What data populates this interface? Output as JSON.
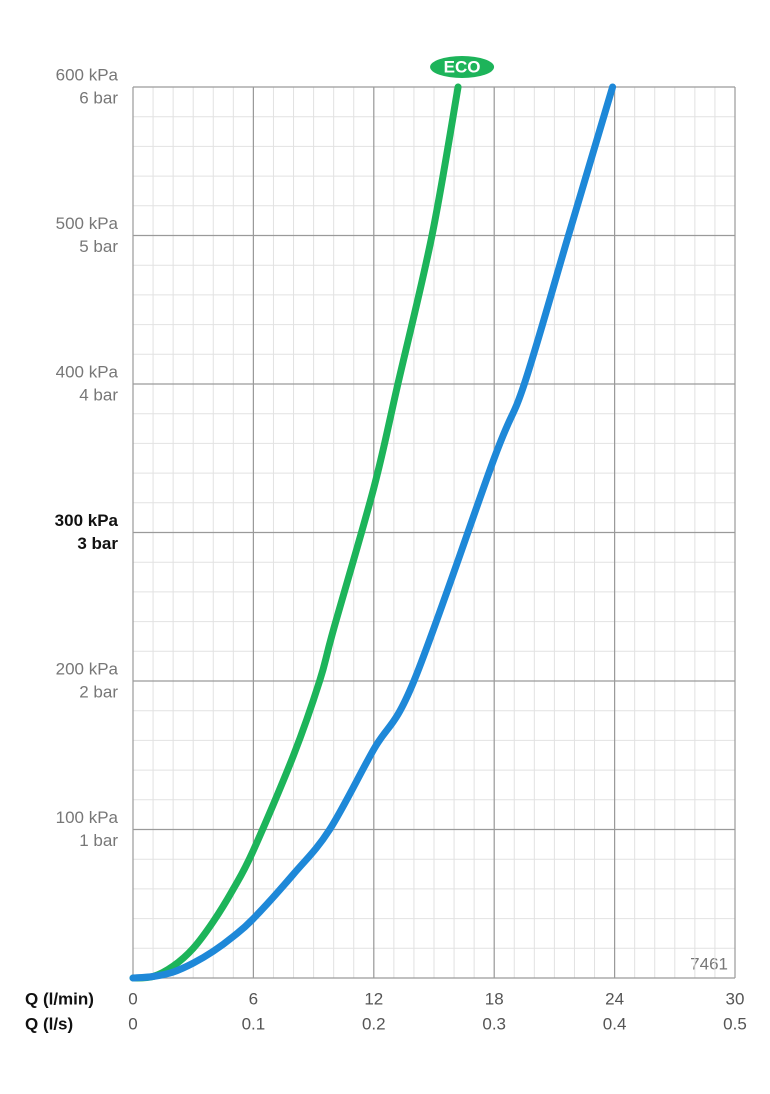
{
  "chart_data": {
    "type": "line",
    "xlim": [
      0,
      30
    ],
    "xticks": [
      0,
      6,
      12,
      18,
      24,
      30
    ],
    "x2lim": [
      0,
      0.5
    ],
    "x2ticks": [
      0,
      0.1,
      0.2,
      0.3,
      0.4,
      0.5
    ],
    "xlabel": "Q (l/min)",
    "x2label": "Q (l/s)",
    "ylim": [
      0,
      600
    ],
    "yticks": [
      {
        "value": 100,
        "label": "100 kPa"
      },
      {
        "value": 200,
        "label": "200 kPa"
      },
      {
        "value": 300,
        "label": "300 kPa"
      },
      {
        "value": 400,
        "label": "400 kPa"
      },
      {
        "value": 500,
        "label": "500 kPa"
      },
      {
        "value": 600,
        "label": "600 kPa"
      }
    ],
    "ytick_sublabels": [
      "1 bar",
      "2 bar",
      "3 bar",
      "4 bar",
      "5 bar",
      "6 bar"
    ],
    "bold_ytick": 300,
    "grid": true,
    "minor_xstep": 1,
    "minor_ystep": 20,
    "annotation": "7461",
    "series": [
      {
        "name": "ECO",
        "color": "#1db45a",
        "x": [
          0,
          1,
          2,
          3,
          4,
          5,
          6,
          8,
          9.3,
          10,
          12,
          13.2,
          14.9,
          16.2
        ],
        "values": [
          0,
          1,
          8,
          20,
          38,
          60,
          86,
          150,
          200,
          235,
          330,
          400,
          500,
          600
        ]
      },
      {
        "color": "#1e88d8",
        "x": [
          0,
          1,
          2,
          3,
          4,
          5,
          6,
          8,
          9.8,
          12,
          14,
          18,
          19.5,
          21.7,
          23.9
        ],
        "values": [
          0,
          1,
          4,
          10,
          18,
          28,
          40,
          70,
          100,
          154,
          200,
          350,
          400,
          500,
          600
        ]
      }
    ]
  }
}
